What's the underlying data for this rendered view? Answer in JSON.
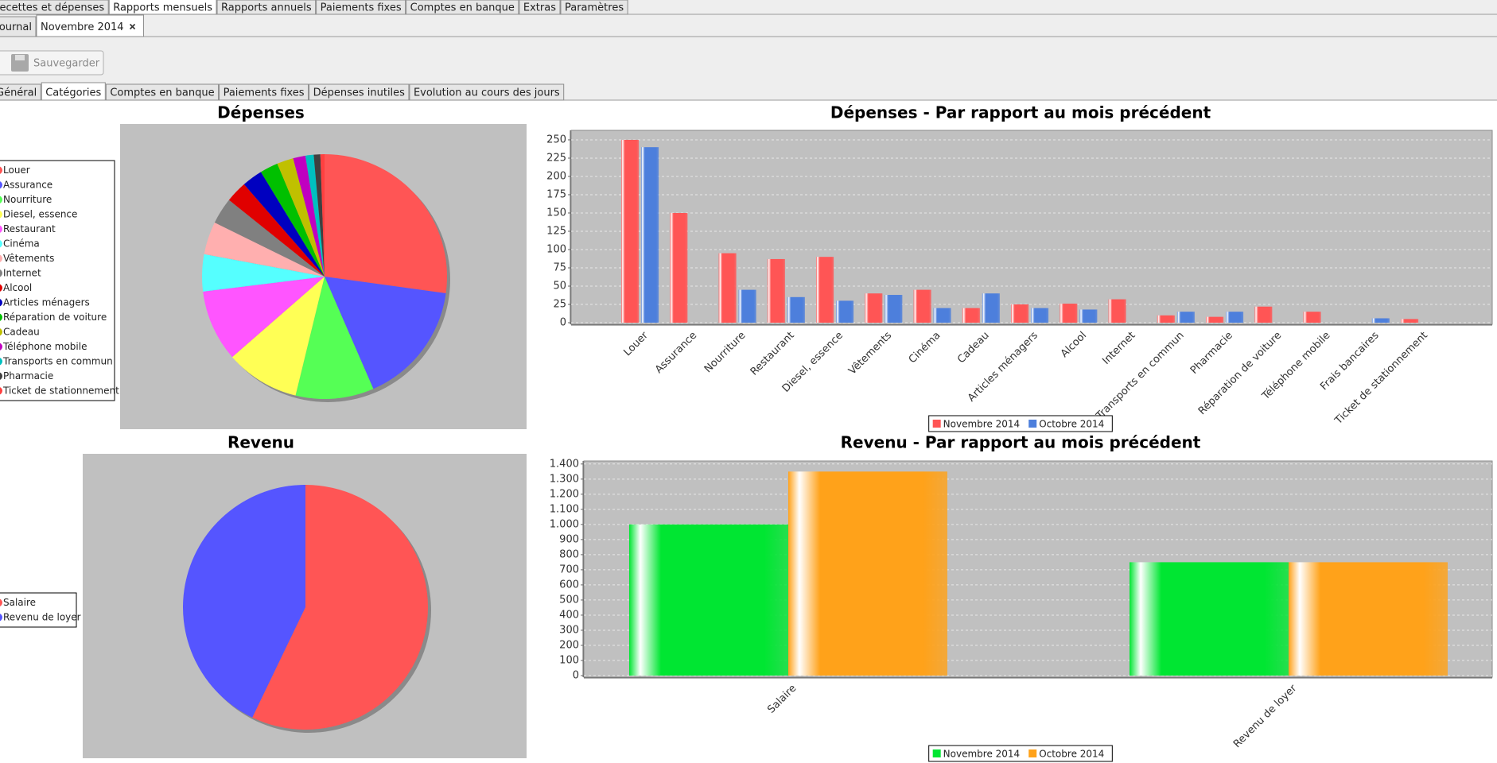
{
  "tabs": [
    "Recettes et dépenses",
    "Rapports mensuels",
    "Rapports annuels",
    "Paiements fixes",
    "Comptes en banque",
    "Extras",
    "Paramètres"
  ],
  "document_tabs": [
    "Journal",
    "Novembre 2014"
  ],
  "toolbar": {
    "save": "Sauvegarder"
  },
  "sub_tabs": [
    "Général",
    "Catégories",
    "Comptes en banque",
    "Paiements fixes",
    "Dépenses inutiles",
    "Evolution au cours des jours"
  ],
  "chart_data": [
    {
      "type": "pie",
      "title": "Dépenses",
      "categories": [
        "Louer",
        "Assurance",
        "Nourriture",
        "Diesel, essence",
        "Restaurant",
        "Cinéma",
        "Vêtements",
        "Internet",
        "Alcool",
        "Articles ménagers",
        "Réparation de voiture",
        "Cadeau",
        "Téléphone mobile",
        "Transports en commun",
        "Pharmacie",
        "Ticket de stationnement"
      ],
      "values": [
        250,
        150,
        95,
        90,
        87,
        45,
        40,
        32,
        26,
        25,
        22,
        20,
        15,
        10,
        8,
        5
      ],
      "colors": [
        "#ff5555",
        "#5555ff",
        "#55ff55",
        "#ffff55",
        "#ff55ff",
        "#55ffff",
        "#ffafaf",
        "#808080",
        "#e00000",
        "#0000c0",
        "#00c000",
        "#c0c000",
        "#c000c0",
        "#00c0c0",
        "#404040",
        "#ff4040"
      ]
    },
    {
      "type": "bar",
      "title": "Dépenses - Par rapport au mois précédent",
      "categories": [
        "Louer",
        "Assurance",
        "Nourriture",
        "Restaurant",
        "Diesel, essence",
        "Vêtements",
        "Cinéma",
        "Cadeau",
        "Articles ménagers",
        "Alcool",
        "Internet",
        "Transports en commun",
        "Pharmacie",
        "Réparation de voiture",
        "Téléphone mobile",
        "Frais bancaires",
        "Ticket de stationnement"
      ],
      "series": [
        {
          "name": "Novembre 2014",
          "color": "#ff5555",
          "values": [
            250,
            150,
            95,
            87,
            90,
            40,
            45,
            20,
            25,
            26,
            32,
            10,
            8,
            22,
            15,
            null,
            5
          ]
        },
        {
          "name": "Octobre 2014",
          "color": "#4d7fdc",
          "values": [
            240,
            null,
            45,
            35,
            30,
            38,
            20,
            40,
            20,
            18,
            null,
            15,
            15,
            null,
            null,
            6,
            null
          ]
        }
      ],
      "ylim": [
        0,
        263
      ],
      "yticks": [
        0,
        25,
        50,
        75,
        100,
        125,
        150,
        175,
        200,
        225,
        250
      ],
      "grid": true
    },
    {
      "type": "pie",
      "title": "Revenu",
      "categories": [
        "Salaire",
        "Revenu de loyer"
      ],
      "values": [
        1000,
        750
      ],
      "colors": [
        "#ff5555",
        "#5555ff"
      ]
    },
    {
      "type": "bar",
      "title": "Revenu - Par rapport au mois précédent",
      "categories": [
        "Salaire",
        "Revenu de loyer"
      ],
      "series": [
        {
          "name": "Novembre 2014",
          "color": "#00e632",
          "values": [
            1000,
            750
          ]
        },
        {
          "name": "Octobre 2014",
          "color": "#ffa21a",
          "values": [
            1350,
            750
          ]
        }
      ],
      "ylim": [
        0,
        1420
      ],
      "yticks": [
        0,
        100,
        200,
        300,
        400,
        500,
        600,
        700,
        800,
        900,
        {
          "value": 1000,
          "label": "1.000"
        },
        {
          "value": 1100,
          "label": "1.100"
        },
        {
          "value": 1200,
          "label": "1.200"
        },
        {
          "value": 1300,
          "label": "1.300"
        },
        {
          "value": 1400,
          "label": "1.400"
        }
      ],
      "grid": true
    }
  ]
}
